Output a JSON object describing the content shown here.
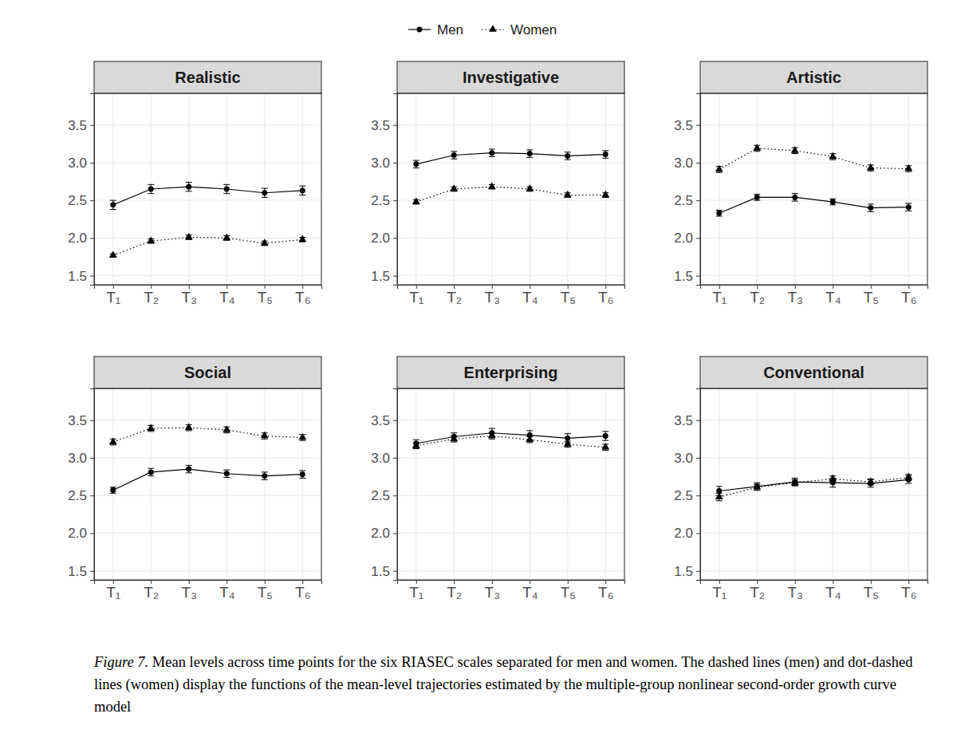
{
  "chart_data": [
    {
      "type": "line",
      "title": "Realistic",
      "legend": "top",
      "categories": [
        "T₁",
        "T₂",
        "T₃",
        "T₄",
        "T₅",
        "T₆"
      ],
      "series": [
        {
          "name": "Men",
          "color": "#000000",
          "marker": "circle",
          "line_style": "solid",
          "values": [
            2.44,
            2.65,
            2.68,
            2.65,
            2.6,
            2.63
          ],
          "errors": [
            0.06,
            0.06,
            0.06,
            0.06,
            0.06,
            0.06
          ]
        },
        {
          "name": "Women",
          "color": "#000000",
          "marker": "triangle",
          "line_style": "dotted",
          "values": [
            1.77,
            1.96,
            2.01,
            2.0,
            1.93,
            1.98
          ],
          "errors": [
            0.02,
            0.03,
            0.03,
            0.03,
            0.03,
            0.03
          ]
        }
      ],
      "ylim": [
        1.38,
        3.92
      ],
      "yticks": [
        1.5,
        {
          "value": 2,
          "label": "2.0"
        },
        2.5,
        {
          "value": 3,
          "label": "3.0"
        },
        3.5
      ],
      "grid": true
    },
    {
      "type": "line",
      "title": "Investigative",
      "categories": [
        "T₁",
        "T₂",
        "T₃",
        "T₄",
        "T₅",
        "T₆"
      ],
      "series": [
        {
          "name": "Men",
          "color": "#000000",
          "marker": "circle",
          "line_style": "solid",
          "values": [
            2.98,
            3.1,
            3.13,
            3.12,
            3.09,
            3.11
          ],
          "errors": [
            0.05,
            0.05,
            0.05,
            0.05,
            0.05,
            0.05
          ]
        },
        {
          "name": "Women",
          "color": "#000000",
          "marker": "triangle",
          "line_style": "dotted",
          "values": [
            2.48,
            2.65,
            2.68,
            2.65,
            2.57,
            2.57
          ],
          "errors": [
            0.03,
            0.03,
            0.03,
            0.03,
            0.03,
            0.03
          ]
        }
      ],
      "ylim": [
        1.38,
        3.92
      ],
      "yticks": [
        1.5,
        {
          "value": 2,
          "label": "2.0"
        },
        2.5,
        {
          "value": 3,
          "label": "3.0"
        },
        3.5
      ],
      "grid": true
    },
    {
      "type": "line",
      "title": "Artistic",
      "categories": [
        "T₁",
        "T₂",
        "T₃",
        "T₄",
        "T₅",
        "T₆"
      ],
      "series": [
        {
          "name": "Men",
          "color": "#000000",
          "marker": "circle",
          "line_style": "solid",
          "values": [
            2.33,
            2.54,
            2.54,
            2.48,
            2.4,
            2.41
          ],
          "errors": [
            0.04,
            0.04,
            0.05,
            0.04,
            0.05,
            0.05
          ]
        },
        {
          "name": "Women",
          "color": "#000000",
          "marker": "triangle",
          "line_style": "dotted",
          "values": [
            2.91,
            3.19,
            3.16,
            3.08,
            2.93,
            2.92
          ],
          "errors": [
            0.04,
            0.04,
            0.04,
            0.04,
            0.04,
            0.04
          ]
        }
      ],
      "ylim": [
        1.38,
        3.92
      ],
      "yticks": [
        1.5,
        {
          "value": 2,
          "label": "2.0"
        },
        2.5,
        {
          "value": 3,
          "label": "3.0"
        },
        3.5
      ],
      "grid": true
    },
    {
      "type": "line",
      "title": "Social",
      "categories": [
        "T₁",
        "T₂",
        "T₃",
        "T₄",
        "T₅",
        "T₆"
      ],
      "series": [
        {
          "name": "Men",
          "color": "#000000",
          "marker": "circle",
          "line_style": "solid",
          "values": [
            2.57,
            2.81,
            2.85,
            2.79,
            2.76,
            2.78
          ],
          "errors": [
            0.04,
            0.05,
            0.05,
            0.05,
            0.05,
            0.05
          ]
        },
        {
          "name": "Women",
          "color": "#000000",
          "marker": "triangle",
          "line_style": "dotted",
          "values": [
            3.21,
            3.39,
            3.4,
            3.37,
            3.29,
            3.27
          ],
          "errors": [
            0.04,
            0.04,
            0.04,
            0.04,
            0.04,
            0.04
          ]
        }
      ],
      "ylim": [
        1.38,
        3.92
      ],
      "yticks": [
        1.5,
        {
          "value": 2,
          "label": "2.0"
        },
        2.5,
        {
          "value": 3,
          "label": "3.0"
        },
        3.5
      ],
      "grid": true
    },
    {
      "type": "line",
      "title": "Enterprising",
      "categories": [
        "T₁",
        "T₂",
        "T₃",
        "T₄",
        "T₅",
        "T₆"
      ],
      "series": [
        {
          "name": "Men",
          "color": "#000000",
          "marker": "circle",
          "line_style": "solid",
          "values": [
            3.19,
            3.28,
            3.33,
            3.3,
            3.26,
            3.29
          ],
          "errors": [
            0.05,
            0.05,
            0.06,
            0.06,
            0.06,
            0.06
          ]
        },
        {
          "name": "Women",
          "color": "#000000",
          "marker": "triangle",
          "line_style": "dotted",
          "values": [
            3.16,
            3.25,
            3.29,
            3.24,
            3.18,
            3.14
          ],
          "errors": [
            0.04,
            0.04,
            0.04,
            0.04,
            0.04,
            0.04
          ]
        }
      ],
      "ylim": [
        1.38,
        3.92
      ],
      "yticks": [
        1.5,
        {
          "value": 2,
          "label": "2.0"
        },
        2.5,
        {
          "value": 3,
          "label": "3.0"
        },
        3.5
      ],
      "grid": true
    },
    {
      "type": "line",
      "title": "Conventional",
      "categories": [
        "T₁",
        "T₂",
        "T₃",
        "T₄",
        "T₅",
        "T₆"
      ],
      "series": [
        {
          "name": "Men",
          "color": "#000000",
          "marker": "circle",
          "line_style": "solid",
          "values": [
            2.56,
            2.62,
            2.68,
            2.67,
            2.66,
            2.71
          ],
          "errors": [
            0.06,
            0.05,
            0.05,
            0.06,
            0.05,
            0.05
          ]
        },
        {
          "name": "Women",
          "color": "#000000",
          "marker": "triangle",
          "line_style": "dotted",
          "values": [
            2.48,
            2.61,
            2.67,
            2.72,
            2.68,
            2.74
          ],
          "errors": [
            0.05,
            0.04,
            0.04,
            0.04,
            0.04,
            0.04
          ]
        }
      ],
      "ylim": [
        1.38,
        3.92
      ],
      "yticks": [
        1.5,
        {
          "value": 2,
          "label": "2.0"
        },
        2.5,
        {
          "value": 3,
          "label": "3.0"
        },
        3.5
      ],
      "grid": true
    }
  ],
  "caption": {
    "label": "Figure 7.",
    "text": "Mean levels across time points for the six RIASEC scales separated for men and women. The dashed lines (men) and dot-dashed lines (women) display the functions of the mean-level trajectories estimated by the multiple-group nonlinear second-order growth curve model"
  }
}
